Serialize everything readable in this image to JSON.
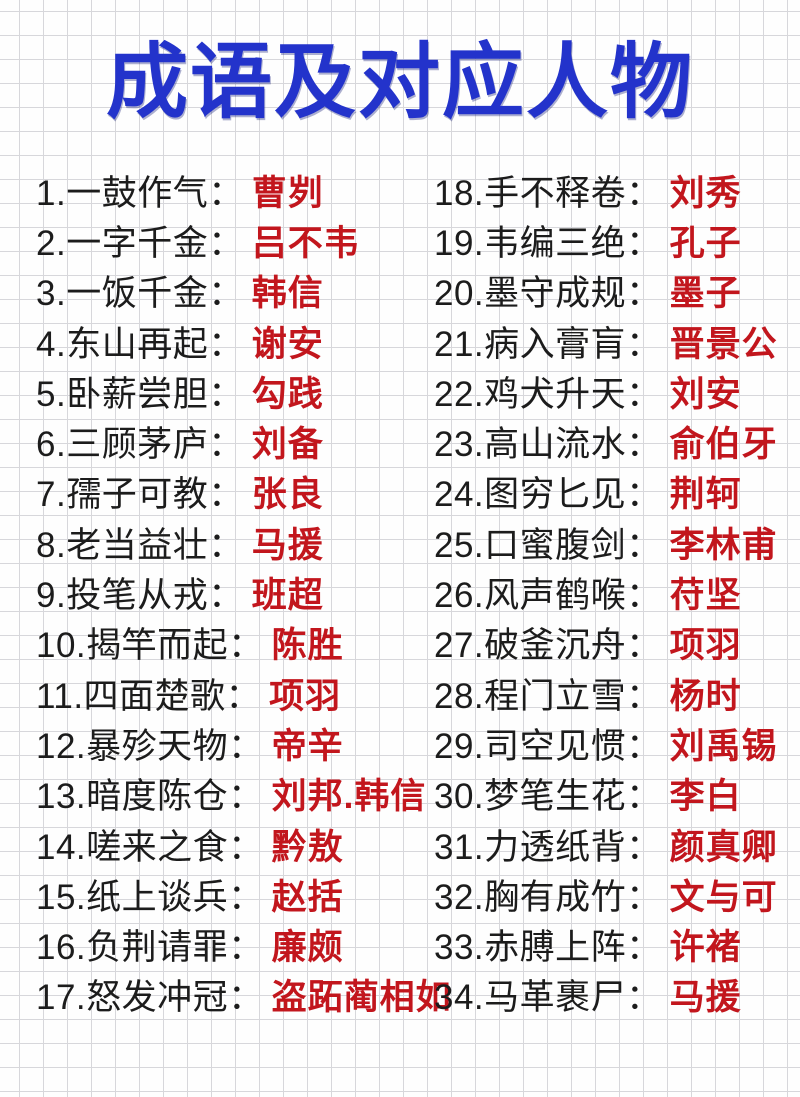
{
  "page": {
    "title": "成语及对应人物"
  },
  "colors": {
    "title_blue": "#2333cb",
    "person_red": "#c2161d",
    "text_black": "#1c1c1c",
    "grid_line": "#d7d7db",
    "background": "#fefefe"
  },
  "list": {
    "left_items": [
      {
        "label": "1.一鼓作气：",
        "person": "曹刿"
      },
      {
        "label": "2.一字千金：",
        "person": "吕不韦"
      },
      {
        "label": "3.一饭千金：",
        "person": "韩信"
      },
      {
        "label": "4.东山再起：",
        "person": "谢安"
      },
      {
        "label": "5.卧薪尝胆：",
        "person": "勾践"
      },
      {
        "label": "6.三顾茅庐：",
        "person": "刘备"
      },
      {
        "label": "7.孺子可教：",
        "person": "张良"
      },
      {
        "label": "8.老当益壮：",
        "person": "马援"
      },
      {
        "label": "9.投笔从戎：",
        "person": "班超"
      },
      {
        "label": "10.揭竿而起：",
        "person": "陈胜"
      },
      {
        "label": "11.四面楚歌：",
        "person": "项羽"
      },
      {
        "label": "12.暴殄天物：",
        "person": "帝辛"
      },
      {
        "label": "13.暗度陈仓：",
        "person": "刘邦.韩信"
      },
      {
        "label": "14.嗟来之食：",
        "person": "黔敖"
      },
      {
        "label": "15.纸上谈兵：",
        "person": "赵括"
      },
      {
        "label": "16.负荆请罪：",
        "person": "廉颇"
      },
      {
        "label": "17.怒发冲冠：",
        "person": "盗跖蔺相如"
      }
    ],
    "right_items": [
      {
        "label": "18.手不释卷：",
        "person": "刘秀"
      },
      {
        "label": "19.韦编三绝：",
        "person": "孔子"
      },
      {
        "label": "20.墨守成规：",
        "person": "墨子"
      },
      {
        "label": "21.病入膏肓：",
        "person": "晋景公"
      },
      {
        "label": "22.鸡犬升天：",
        "person": "刘安"
      },
      {
        "label": "23.高山流水：",
        "person": "俞伯牙"
      },
      {
        "label": "24.图穷匕见：",
        "person": "荆轲"
      },
      {
        "label": "25.口蜜腹剑：",
        "person": "李林甫"
      },
      {
        "label": "26.风声鹤喉：",
        "person": "苻坚"
      },
      {
        "label": "27.破釜沉舟：",
        "person": "项羽"
      },
      {
        "label": "28.程门立雪：",
        "person": "杨时"
      },
      {
        "label": "29.司空见惯：",
        "person": "刘禹锡"
      },
      {
        "label": "30.梦笔生花：",
        "person": "李白"
      },
      {
        "label": "31.力透纸背：",
        "person": "颜真卿"
      },
      {
        "label": "32.胸有成竹：",
        "person": "文与可"
      },
      {
        "label": "33.赤膊上阵：",
        "person": "许褚"
      },
      {
        "label": "34.马革裹尸：",
        "person": "马援"
      }
    ]
  }
}
